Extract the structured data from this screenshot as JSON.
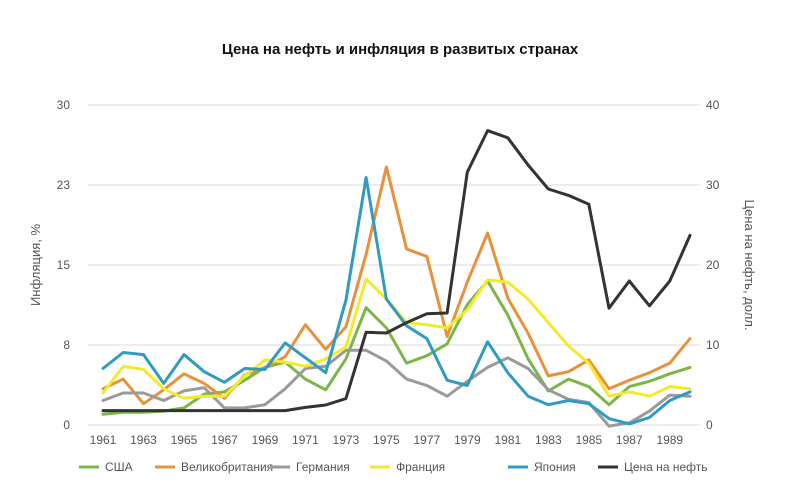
{
  "chart_data": {
    "type": "line",
    "title": "Цена на нефть и инфляция в развитых странах",
    "ylabel": "Инфляция, %",
    "y2label": "Цена на нефть, долл.",
    "ylim": [
      0,
      30
    ],
    "y2lim": [
      0,
      40
    ],
    "yticks": [
      "0",
      "8",
      "15",
      "23",
      "30"
    ],
    "y2ticks": [
      "0",
      "10",
      "20",
      "30",
      "40"
    ],
    "xticks": [
      "1961",
      "1963",
      "1965",
      "1967",
      "1969",
      "1971",
      "1973",
      "1975",
      "1977",
      "1979",
      "1981",
      "1983",
      "1985",
      "1987",
      "1989"
    ],
    "grid": "horizontal",
    "legend_position": "bottom",
    "x": [
      1961,
      1962,
      1963,
      1964,
      1965,
      1966,
      1967,
      1968,
      1969,
      1970,
      1971,
      1972,
      1973,
      1974,
      1975,
      1976,
      1977,
      1978,
      1979,
      1980,
      1981,
      1982,
      1983,
      1984,
      1985,
      1986,
      1987,
      1988,
      1989,
      1990
    ],
    "series": [
      {
        "name": "США",
        "axis": "left",
        "color": "#7ab648",
        "values": [
          1.0,
          1.2,
          1.2,
          1.3,
          1.6,
          2.9,
          3.1,
          4.2,
          5.4,
          5.9,
          4.3,
          3.3,
          6.2,
          11.0,
          9.1,
          5.8,
          6.5,
          7.6,
          11.3,
          13.5,
          10.3,
          6.2,
          3.2,
          4.3,
          3.6,
          1.9,
          3.6,
          4.1,
          4.8,
          5.4
        ]
      },
      {
        "name": "Великобритания",
        "axis": "left",
        "color": "#e8913a",
        "values": [
          3.4,
          4.3,
          2.0,
          3.3,
          4.8,
          3.9,
          2.5,
          4.7,
          5.4,
          6.4,
          9.4,
          7.1,
          9.2,
          16.0,
          24.2,
          16.5,
          15.8,
          8.3,
          13.4,
          18.0,
          11.9,
          8.6,
          4.6,
          5.0,
          6.1,
          3.4,
          4.2,
          4.9,
          5.8,
          8.1
        ]
      },
      {
        "name": "Германия",
        "axis": "left",
        "color": "#9a9a9a",
        "values": [
          2.3,
          3.0,
          3.0,
          2.3,
          3.2,
          3.5,
          1.6,
          1.6,
          1.9,
          3.4,
          5.3,
          5.5,
          7.0,
          7.0,
          6.0,
          4.3,
          3.7,
          2.7,
          4.1,
          5.4,
          6.3,
          5.3,
          3.3,
          2.4,
          2.1,
          -0.1,
          0.2,
          1.3,
          2.8,
          2.7
        ]
      },
      {
        "name": "Франция",
        "axis": "left",
        "color": "#f2ea2c",
        "values": [
          3.0,
          5.5,
          5.2,
          3.4,
          2.5,
          2.7,
          2.7,
          4.6,
          6.1,
          5.9,
          5.5,
          6.2,
          7.3,
          13.7,
          11.8,
          9.6,
          9.4,
          9.1,
          10.8,
          13.6,
          13.4,
          11.8,
          9.6,
          7.4,
          5.8,
          2.7,
          3.1,
          2.7,
          3.6,
          3.4
        ]
      },
      {
        "name": "Япония",
        "axis": "left",
        "color": "#2f9bc1",
        "values": [
          5.3,
          6.8,
          6.6,
          3.9,
          6.6,
          5.0,
          4.0,
          5.3,
          5.2,
          7.7,
          6.3,
          4.9,
          11.7,
          23.2,
          11.8,
          9.3,
          8.1,
          4.2,
          3.7,
          7.8,
          4.9,
          2.7,
          1.9,
          2.3,
          2.0,
          0.6,
          0.1,
          0.7,
          2.3,
          3.1
        ]
      },
      {
        "name": "Цена на нефть",
        "axis": "right",
        "color": "#333333",
        "values": [
          1.8,
          1.8,
          1.8,
          1.8,
          1.8,
          1.8,
          1.8,
          1.8,
          1.8,
          1.8,
          2.2,
          2.5,
          3.3,
          11.6,
          11.5,
          12.8,
          13.9,
          14.0,
          31.6,
          36.8,
          35.9,
          32.5,
          29.5,
          28.7,
          27.6,
          14.6,
          18.0,
          14.9,
          18.0,
          23.7
        ]
      }
    ]
  }
}
